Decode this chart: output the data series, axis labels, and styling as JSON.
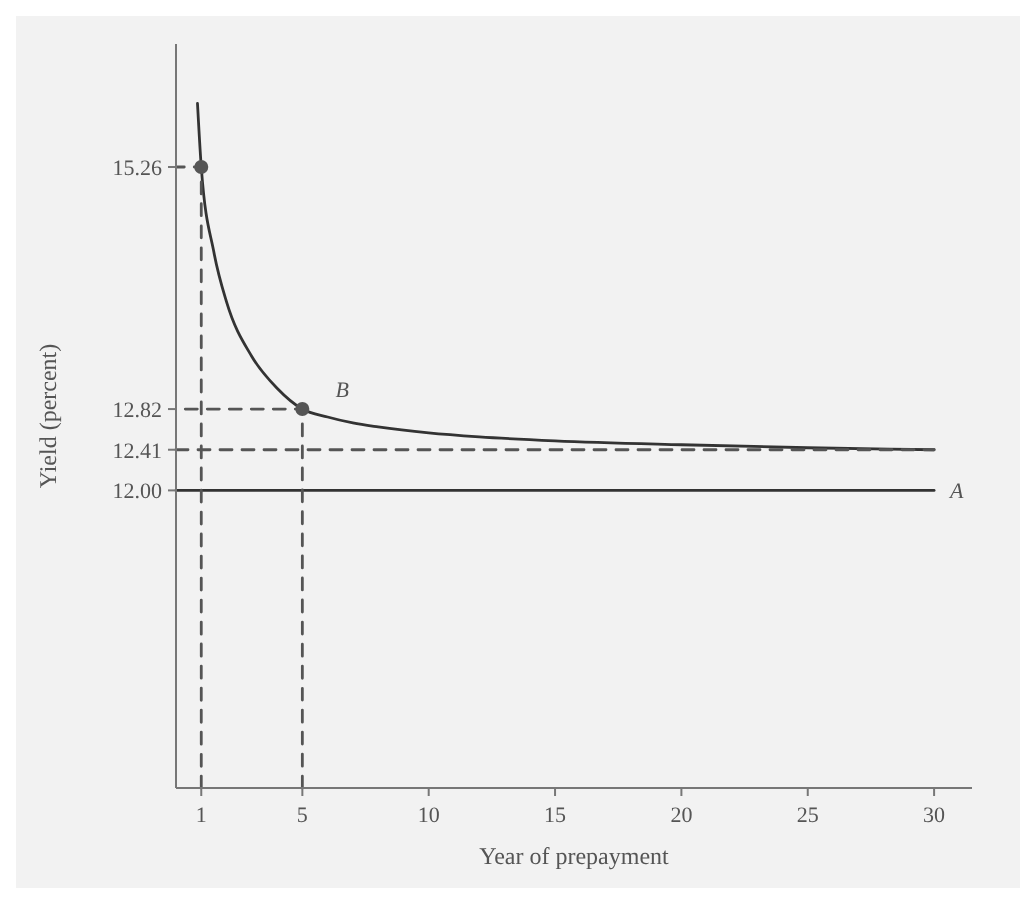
{
  "chart_data": {
    "type": "line",
    "xlabel": "Year of prepayment",
    "ylabel": "Yield (percent)",
    "xlim": [
      0,
      31.5
    ],
    "ylim": [
      9,
      16.5
    ],
    "xticks": [
      1,
      5,
      10,
      15,
      20,
      25,
      30
    ],
    "yticks": [
      {
        "value": 12,
        "label": "12.00"
      },
      12.41,
      12.82,
      15.26
    ],
    "grid": false,
    "legend": false,
    "marker": "none",
    "series": [
      {
        "name": "B",
        "color": "#333333",
        "x": [
          0.85,
          1,
          1.5,
          2,
          3,
          4,
          5,
          6,
          7,
          8,
          10,
          12,
          15,
          20,
          25,
          30
        ],
        "values": [
          15.9,
          15.26,
          14.4,
          13.9,
          13.35,
          13.03,
          12.82,
          12.74,
          12.68,
          12.64,
          12.58,
          12.54,
          12.5,
          12.46,
          12.43,
          12.41
        ]
      },
      {
        "name": "A",
        "color": "#333333",
        "x": [
          0,
          30
        ],
        "values": [
          12,
          12
        ]
      },
      {
        "type": "line",
        "color": "#555555",
        "line_style": "dashed",
        "x": [
          1,
          1,
          0
        ],
        "values": [
          9,
          15.26,
          15.26
        ]
      },
      {
        "type": "line",
        "color": "#555555",
        "line_style": "dashed",
        "x": [
          5,
          5,
          0
        ],
        "values": [
          9,
          12.82,
          12.82
        ]
      },
      {
        "type": "line",
        "color": "#555555",
        "line_style": "dashed",
        "x": [
          0,
          30
        ],
        "values": [
          12.41,
          12.41
        ]
      },
      {
        "type": "scatter",
        "color": "#555555",
        "marker": "circle",
        "x": [
          1,
          5
        ],
        "values": [
          15.26,
          12.82
        ]
      }
    ]
  }
}
